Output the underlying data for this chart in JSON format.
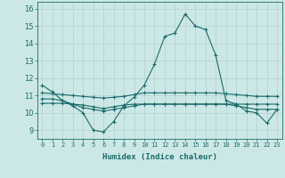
{
  "xlabel": "Humidex (Indice chaleur)",
  "xlim": [
    -0.5,
    23.5
  ],
  "ylim": [
    8.5,
    16.4
  ],
  "xtick_labels": [
    "0",
    "1",
    "2",
    "3",
    "4",
    "5",
    "6",
    "7",
    "8",
    "9",
    "10",
    "11",
    "12",
    "13",
    "14",
    "15",
    "16",
    "17",
    "18",
    "19",
    "20",
    "21",
    "22",
    "23"
  ],
  "ytick_values": [
    9,
    10,
    11,
    12,
    13,
    14,
    15,
    16
  ],
  "background_color": "#cce8e6",
  "grid_color": "#b8d4d2",
  "line_color": "#1a6b6b",
  "series": [
    [
      11.6,
      11.2,
      10.7,
      10.4,
      10.0,
      9.0,
      8.9,
      9.5,
      10.4,
      10.9,
      11.6,
      12.8,
      14.4,
      14.6,
      15.7,
      15.0,
      14.8,
      13.3,
      10.7,
      10.5,
      10.1,
      10.0,
      9.4,
      10.2
    ],
    [
      10.8,
      10.8,
      10.7,
      10.5,
      10.3,
      10.2,
      10.1,
      10.2,
      10.3,
      10.4,
      10.5,
      10.5,
      10.5,
      10.5,
      10.5,
      10.5,
      10.5,
      10.5,
      10.5,
      10.4,
      10.3,
      10.2,
      10.2,
      10.2
    ],
    [
      11.15,
      11.1,
      11.05,
      11.0,
      10.95,
      10.9,
      10.85,
      10.9,
      10.95,
      11.05,
      11.15,
      11.15,
      11.15,
      11.15,
      11.15,
      11.15,
      11.15,
      11.15,
      11.1,
      11.05,
      11.0,
      10.95,
      10.95,
      10.95
    ],
    [
      10.55,
      10.55,
      10.55,
      10.5,
      10.45,
      10.35,
      10.25,
      10.35,
      10.45,
      10.5,
      10.5,
      10.5,
      10.5,
      10.5,
      10.5,
      10.5,
      10.5,
      10.5,
      10.5,
      10.5,
      10.5,
      10.5,
      10.5,
      10.5
    ]
  ]
}
